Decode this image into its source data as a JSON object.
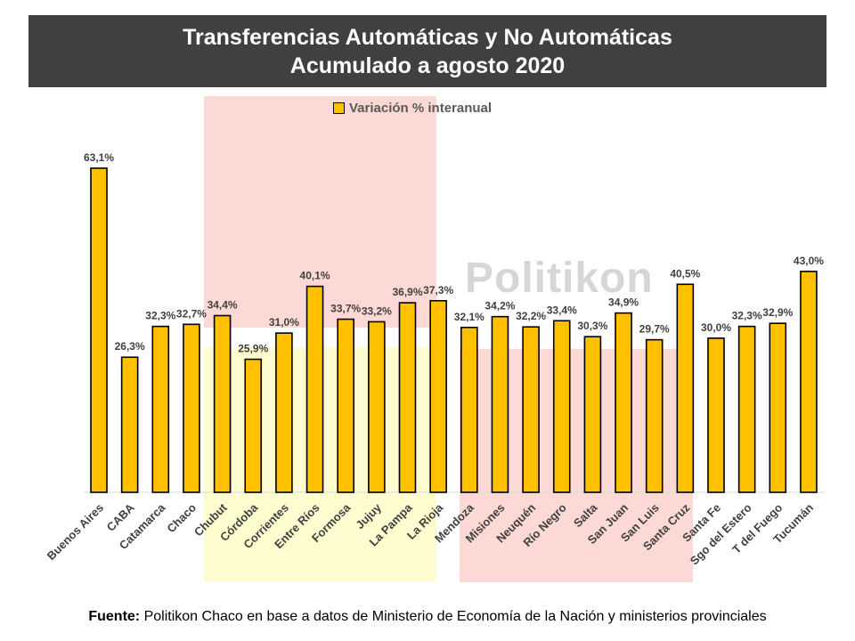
{
  "header": {
    "title_line1": "Transferencias Automáticas y No Automáticas",
    "title_line2": "Acumulado a agosto 2020"
  },
  "watermark": "Politikon",
  "source": {
    "label": "Fuente:",
    "text": "Politikon Chaco en base a datos de Ministerio de Economía de la Nación y ministerios provinciales"
  },
  "colors": {
    "bar": "#ffc000",
    "bar_outline": "#000000",
    "title_bg": "#404040",
    "highlight_red": "#fdd9d5",
    "highlight_yellow": "#fdfdd0",
    "data_label": "#404040"
  },
  "chart_data": {
    "type": "bar",
    "title": "Transferencias Automáticas y No Automáticas Acumulado a agosto 2020",
    "xlabel": "",
    "ylabel": "",
    "ylim": [
      0,
      70
    ],
    "grid": false,
    "legend_position": "top",
    "categories": [
      "Buenos Aires",
      "CABA",
      "Catamarca",
      "Chaco",
      "Chubut",
      "Córdoba",
      "Corrientes",
      "Entre Ríos",
      "Formosa",
      "Jujuy",
      "La Pampa",
      "La Rioja",
      "Mendoza",
      "Misiones",
      "Neuquén",
      "Río Negro",
      "Salta",
      "San Juan",
      "San Luis",
      "Santa Cruz",
      "Santa Fe",
      "Sgo del Estero",
      "T del Fuego",
      "Tucumán"
    ],
    "series": [
      {
        "name": "Variación % interanual",
        "values": [
          63.1,
          26.3,
          32.3,
          32.7,
          34.4,
          25.9,
          31.0,
          40.1,
          33.7,
          33.2,
          36.9,
          37.3,
          32.1,
          34.2,
          32.2,
          33.4,
          30.3,
          34.9,
          29.7,
          40.5,
          30.0,
          32.3,
          32.9,
          43.0
        ],
        "labels": [
          "63,1%",
          "26,3%",
          "32,3%",
          "32,7%",
          "34,4%",
          "25,9%",
          "31,0%",
          "40,1%",
          "33,7%",
          "33,2%",
          "36,9%",
          "37,3%",
          "32,1%",
          "34,2%",
          "32,2%",
          "33,4%",
          "30,3%",
          "34,9%",
          "29,7%",
          "40,5%",
          "30,0%",
          "32,3%",
          "32,9%",
          "43,0%"
        ]
      }
    ]
  }
}
